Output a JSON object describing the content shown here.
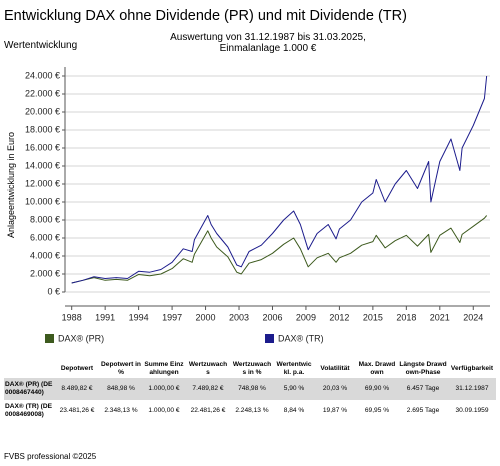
{
  "chart_data": {
    "type": "line",
    "title": "Entwicklung DAX ohne Dividende (PR) und mit Dividende (TR)",
    "section_label": "Wertentwicklung",
    "subtitle": [
      "Auswertung von 31.12.1987 bis 31.03.2025,",
      "Einmalanlage 1.000 €"
    ],
    "y_label": "Anlageentwicklung in Euro",
    "x": [
      1988,
      1989,
      1990,
      1991,
      1992,
      1993,
      1994,
      1995,
      1996,
      1997,
      1998,
      1998.8,
      1999,
      2000.2,
      2000.5,
      2001,
      2002,
      2002.8,
      2003.2,
      2003.9,
      2005,
      2006,
      2007,
      2007.9,
      2008.5,
      2009.2,
      2010,
      2011,
      2011.7,
      2012,
      2013,
      2014,
      2015,
      2015.3,
      2016.1,
      2017,
      2018,
      2019,
      2020,
      2020.2,
      2021,
      2022,
      2022.8,
      2023,
      2024,
      2025,
      2025.2
    ],
    "series": [
      {
        "name": "DAX® (PR)",
        "color": "#3d5a1e",
        "values": [
          1000,
          1300,
          1600,
          1300,
          1400,
          1300,
          1950,
          1800,
          2000,
          2600,
          3700,
          3300,
          4200,
          6800,
          6000,
          5000,
          3900,
          2200,
          2000,
          3200,
          3600,
          4300,
          5300,
          6000,
          4800,
          2800,
          3800,
          4300,
          3300,
          3800,
          4300,
          5200,
          5600,
          6300,
          4900,
          5700,
          6300,
          5100,
          6400,
          4400,
          6300,
          7100,
          5500,
          6400,
          7300,
          8200,
          8500
        ]
      },
      {
        "name": "DAX® (TR)",
        "color": "#1c1c8c",
        "values": [
          1000,
          1300,
          1700,
          1500,
          1600,
          1500,
          2300,
          2200,
          2500,
          3300,
          4800,
          4500,
          5800,
          8500,
          7500,
          6500,
          5000,
          3000,
          2800,
          4500,
          5200,
          6500,
          8000,
          9000,
          7500,
          4700,
          6500,
          7500,
          5900,
          7000,
          8000,
          10000,
          11000,
          12500,
          10000,
          12000,
          13500,
          11500,
          14500,
          10000,
          14500,
          17000,
          13500,
          16000,
          18500,
          21500,
          24000
        ]
      }
    ],
    "xlim": [
      1987.4,
      2025.5
    ],
    "xticks": [
      1988,
      1991,
      1994,
      1997,
      2000,
      2003,
      2006,
      2009,
      2012,
      2015,
      2018,
      2021,
      2024
    ],
    "ylim": [
      0,
      25000
    ],
    "yticks": [
      {
        "value": 0,
        "label": "0 €"
      },
      {
        "value": 2000,
        "label": "2.000 €"
      },
      {
        "value": 4000,
        "label": "4.000 €"
      },
      {
        "value": 6000,
        "label": "6.000 €"
      },
      {
        "value": 8000,
        "label": "8.000 €"
      },
      {
        "value": 10000,
        "label": "10.000 €"
      },
      {
        "value": 12000,
        "label": "12.000 €"
      },
      {
        "value": 14000,
        "label": "14.000 €"
      },
      {
        "value": 16000,
        "label": "16.000 €"
      },
      {
        "value": 18000,
        "label": "18.000 €"
      },
      {
        "value": 20000,
        "label": "20.000 €"
      },
      {
        "value": 22000,
        "label": "22.000 €"
      },
      {
        "value": 24000,
        "label": "24.000 €"
      }
    ],
    "grid": true
  },
  "table": {
    "header": [
      "",
      "Depotwert",
      "Depotwert in %",
      "Summe Einzahlungen",
      "Wertzuwachs",
      "Wertzuwachs in %",
      "Wertentwickl. p.a.",
      "Volatilität",
      "Max. Drawdown",
      "Längste Drawdown-Phase",
      "Verfügbarkeit"
    ],
    "rows": [
      [
        "DAX® (PR) (DE0008467440)",
        "8.489,82 €",
        "848,98 %",
        "1.000,00 €",
        "7.489,82 €",
        "748,98 %",
        "5,90 %",
        "20,03 %",
        "69,90 %",
        "6.457 Tage",
        "31.12.1987"
      ],
      [
        "DAX® (TR) (DE0008469008)",
        "23.481,26 €",
        "2.348,13 %",
        "1.000,00 €",
        "22.481,26 €",
        "2.248,13 %",
        "8,84 %",
        "19,87 %",
        "69,95 %",
        "2.695 Tage",
        "30.09.1959"
      ]
    ]
  },
  "footer": "FVBS professional ©2025"
}
